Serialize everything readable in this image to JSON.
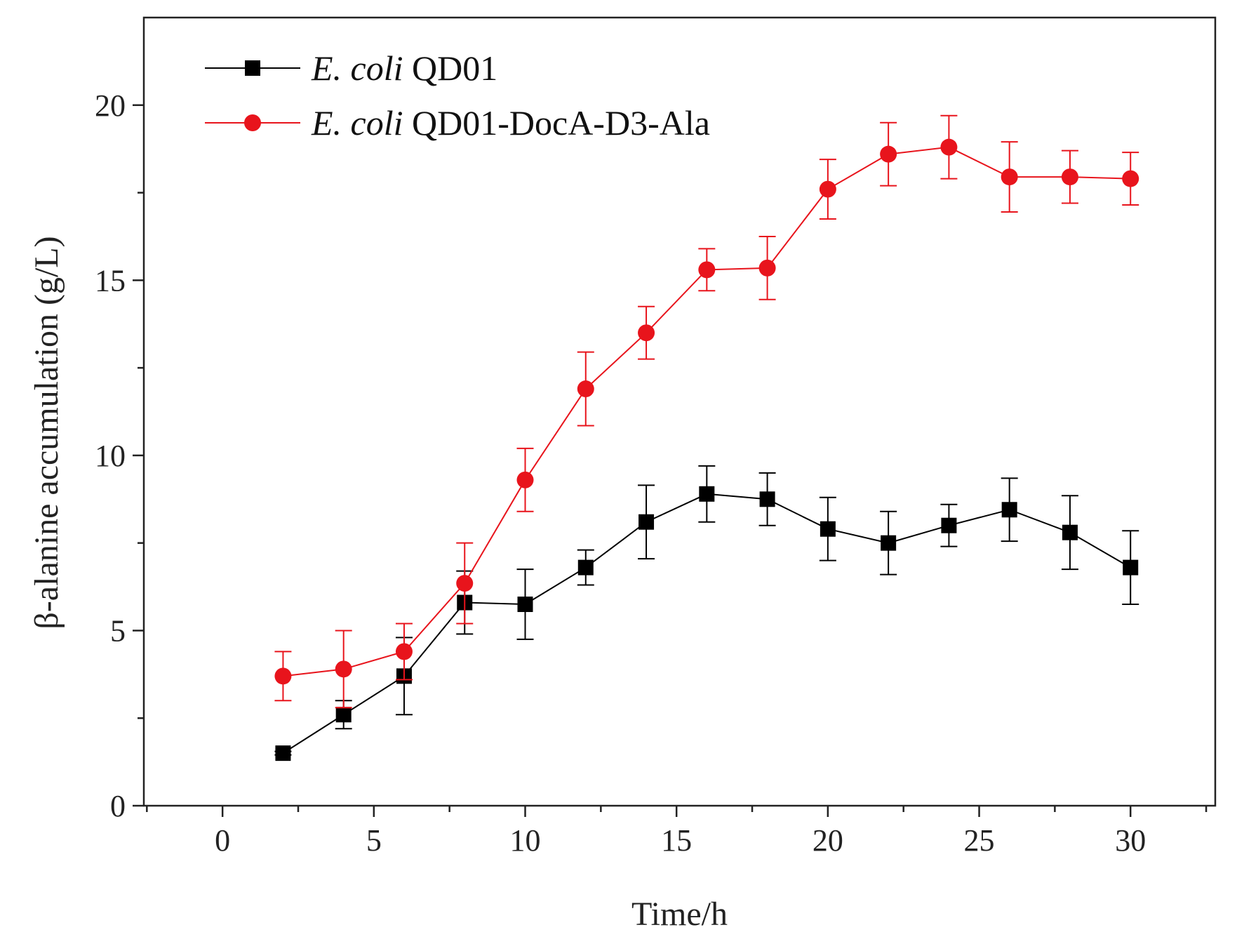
{
  "chart_data": {
    "type": "line",
    "title": "",
    "xlabel": "Time/h",
    "ylabel": "β-alanine accumulation (g/L)",
    "xlim": [
      -2.6,
      32.8
    ],
    "ylim": [
      0,
      22.5
    ],
    "xticks": [
      0,
      5,
      10,
      15,
      20,
      25,
      30
    ],
    "xtick_labels": [
      "0",
      "5",
      "10",
      "15",
      "20",
      "25",
      "30"
    ],
    "yticks": [
      0,
      5,
      10,
      15,
      20
    ],
    "ytick_labels": [
      "0",
      "5",
      "10",
      "15",
      "20"
    ],
    "x_minor_step": 2.5,
    "y_minor_step": 2.5,
    "grid": false,
    "legend_position": "top-left",
    "series": [
      {
        "name_italic": "E. coli",
        "name_rest": " QD01",
        "color": "#000000",
        "marker": "square",
        "x": [
          2,
          4,
          6,
          8,
          10,
          12,
          14,
          16,
          18,
          20,
          22,
          24,
          26,
          28,
          30
        ],
        "y": [
          1.5,
          2.6,
          3.7,
          5.8,
          5.75,
          6.8,
          8.1,
          8.9,
          8.75,
          7.9,
          7.5,
          8.0,
          8.45,
          7.8,
          6.8
        ],
        "err": [
          0.05,
          0.4,
          1.1,
          0.9,
          1.0,
          0.5,
          1.05,
          0.8,
          0.75,
          0.9,
          0.9,
          0.6,
          0.9,
          1.05,
          1.05
        ]
      },
      {
        "name_italic": "E. coli",
        "name_rest": " QD01-DocA-D3-Ala",
        "color": "#e8141c",
        "marker": "circle",
        "x": [
          2,
          4,
          6,
          8,
          10,
          12,
          14,
          16,
          18,
          20,
          22,
          24,
          26,
          28,
          30
        ],
        "y": [
          3.7,
          3.9,
          4.4,
          6.35,
          9.3,
          11.9,
          13.5,
          15.3,
          15.35,
          17.6,
          18.6,
          18.8,
          17.95,
          17.95,
          17.9
        ],
        "err": [
          0.7,
          1.1,
          0.8,
          1.15,
          0.9,
          1.05,
          0.75,
          0.6,
          0.9,
          0.85,
          0.9,
          0.9,
          1.0,
          0.75,
          0.75
        ]
      }
    ]
  }
}
